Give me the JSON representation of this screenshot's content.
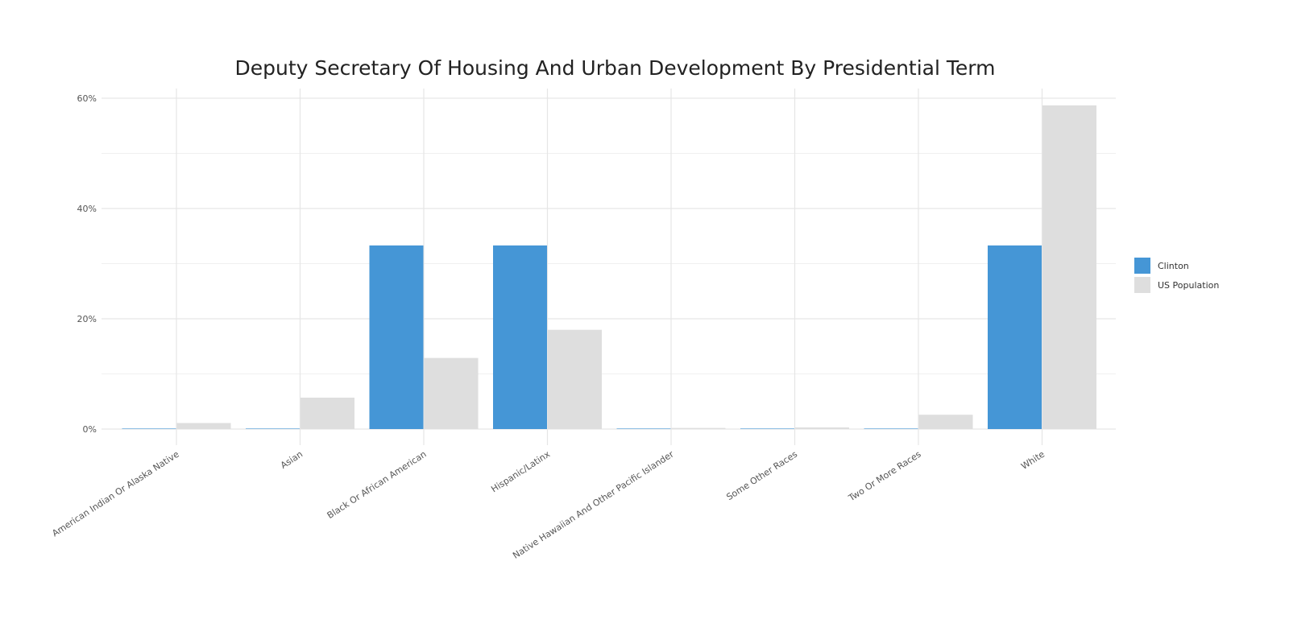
{
  "chart_data": {
    "type": "bar",
    "title": "Deputy Secretary Of Housing And Urban Development By Presidential Term",
    "xlabel": "",
    "ylabel": "",
    "ylim": [
      0,
      60
    ],
    "yticks": [
      0,
      20,
      40,
      60
    ],
    "ytick_labels": [
      "0%",
      "20%",
      "40%",
      "60%"
    ],
    "grid": true,
    "legend_position": "right",
    "categories": [
      "American Indian Or Alaska Native",
      "Asian",
      "Black Or African American",
      "Hispanic/Latinx",
      "Native Hawaiian And Other Pacific Islander",
      "Some Other Races",
      "Two Or More Races",
      "White"
    ],
    "series": [
      {
        "name": "Clinton",
        "color": "#4596D6",
        "values": [
          0,
          0,
          33.3,
          33.3,
          0,
          0,
          0,
          33.3
        ]
      },
      {
        "name": "US Population",
        "color": "#DEDEDE",
        "values": [
          1.1,
          5.7,
          12.9,
          18.0,
          0.2,
          0.3,
          2.6,
          58.7
        ]
      }
    ]
  }
}
